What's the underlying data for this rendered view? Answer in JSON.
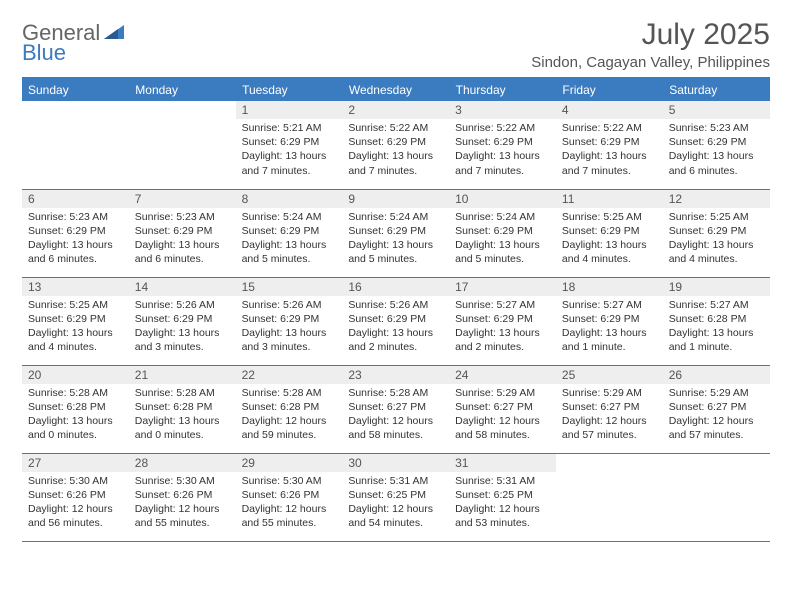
{
  "brand": {
    "first": "General",
    "second": "Blue"
  },
  "title": "July 2025",
  "location": "Sindon, Cagayan Valley, Philippines",
  "colors": {
    "accent": "#3b7bbf",
    "header_text": "#ffffff",
    "daynum_bg": "#eeeeee",
    "text": "#333333",
    "muted": "#555555"
  },
  "weekdays": [
    "Sunday",
    "Monday",
    "Tuesday",
    "Wednesday",
    "Thursday",
    "Friday",
    "Saturday"
  ],
  "weeks": [
    [
      null,
      null,
      {
        "n": "1",
        "sr": "5:21 AM",
        "ss": "6:29 PM",
        "dl": "13 hours and 7 minutes."
      },
      {
        "n": "2",
        "sr": "5:22 AM",
        "ss": "6:29 PM",
        "dl": "13 hours and 7 minutes."
      },
      {
        "n": "3",
        "sr": "5:22 AM",
        "ss": "6:29 PM",
        "dl": "13 hours and 7 minutes."
      },
      {
        "n": "4",
        "sr": "5:22 AM",
        "ss": "6:29 PM",
        "dl": "13 hours and 7 minutes."
      },
      {
        "n": "5",
        "sr": "5:23 AM",
        "ss": "6:29 PM",
        "dl": "13 hours and 6 minutes."
      }
    ],
    [
      {
        "n": "6",
        "sr": "5:23 AM",
        "ss": "6:29 PM",
        "dl": "13 hours and 6 minutes."
      },
      {
        "n": "7",
        "sr": "5:23 AM",
        "ss": "6:29 PM",
        "dl": "13 hours and 6 minutes."
      },
      {
        "n": "8",
        "sr": "5:24 AM",
        "ss": "6:29 PM",
        "dl": "13 hours and 5 minutes."
      },
      {
        "n": "9",
        "sr": "5:24 AM",
        "ss": "6:29 PM",
        "dl": "13 hours and 5 minutes."
      },
      {
        "n": "10",
        "sr": "5:24 AM",
        "ss": "6:29 PM",
        "dl": "13 hours and 5 minutes."
      },
      {
        "n": "11",
        "sr": "5:25 AM",
        "ss": "6:29 PM",
        "dl": "13 hours and 4 minutes."
      },
      {
        "n": "12",
        "sr": "5:25 AM",
        "ss": "6:29 PM",
        "dl": "13 hours and 4 minutes."
      }
    ],
    [
      {
        "n": "13",
        "sr": "5:25 AM",
        "ss": "6:29 PM",
        "dl": "13 hours and 4 minutes."
      },
      {
        "n": "14",
        "sr": "5:26 AM",
        "ss": "6:29 PM",
        "dl": "13 hours and 3 minutes."
      },
      {
        "n": "15",
        "sr": "5:26 AM",
        "ss": "6:29 PM",
        "dl": "13 hours and 3 minutes."
      },
      {
        "n": "16",
        "sr": "5:26 AM",
        "ss": "6:29 PM",
        "dl": "13 hours and 2 minutes."
      },
      {
        "n": "17",
        "sr": "5:27 AM",
        "ss": "6:29 PM",
        "dl": "13 hours and 2 minutes."
      },
      {
        "n": "18",
        "sr": "5:27 AM",
        "ss": "6:29 PM",
        "dl": "13 hours and 1 minute."
      },
      {
        "n": "19",
        "sr": "5:27 AM",
        "ss": "6:28 PM",
        "dl": "13 hours and 1 minute."
      }
    ],
    [
      {
        "n": "20",
        "sr": "5:28 AM",
        "ss": "6:28 PM",
        "dl": "13 hours and 0 minutes."
      },
      {
        "n": "21",
        "sr": "5:28 AM",
        "ss": "6:28 PM",
        "dl": "13 hours and 0 minutes."
      },
      {
        "n": "22",
        "sr": "5:28 AM",
        "ss": "6:28 PM",
        "dl": "12 hours and 59 minutes."
      },
      {
        "n": "23",
        "sr": "5:28 AM",
        "ss": "6:27 PM",
        "dl": "12 hours and 58 minutes."
      },
      {
        "n": "24",
        "sr": "5:29 AM",
        "ss": "6:27 PM",
        "dl": "12 hours and 58 minutes."
      },
      {
        "n": "25",
        "sr": "5:29 AM",
        "ss": "6:27 PM",
        "dl": "12 hours and 57 minutes."
      },
      {
        "n": "26",
        "sr": "5:29 AM",
        "ss": "6:27 PM",
        "dl": "12 hours and 57 minutes."
      }
    ],
    [
      {
        "n": "27",
        "sr": "5:30 AM",
        "ss": "6:26 PM",
        "dl": "12 hours and 56 minutes."
      },
      {
        "n": "28",
        "sr": "5:30 AM",
        "ss": "6:26 PM",
        "dl": "12 hours and 55 minutes."
      },
      {
        "n": "29",
        "sr": "5:30 AM",
        "ss": "6:26 PM",
        "dl": "12 hours and 55 minutes."
      },
      {
        "n": "30",
        "sr": "5:31 AM",
        "ss": "6:25 PM",
        "dl": "12 hours and 54 minutes."
      },
      {
        "n": "31",
        "sr": "5:31 AM",
        "ss": "6:25 PM",
        "dl": "12 hours and 53 minutes."
      },
      null,
      null
    ]
  ],
  "labels": {
    "sunrise": "Sunrise:",
    "sunset": "Sunset:",
    "daylight": "Daylight:"
  }
}
